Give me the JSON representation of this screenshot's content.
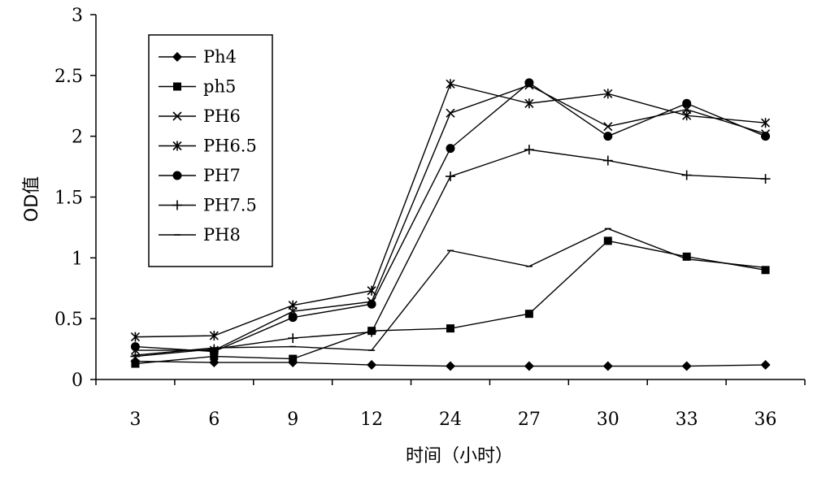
{
  "chart_data": {
    "type": "line",
    "title": "",
    "xlabel": "时间（小时）",
    "ylabel": "OD值",
    "categories": [
      "3",
      "6",
      "9",
      "12",
      "24",
      "27",
      "30",
      "33",
      "36"
    ],
    "ylim": [
      0,
      3
    ],
    "yticks": [
      "0",
      "0.5",
      "1",
      "1.5",
      "2",
      "2.5",
      "3"
    ],
    "grid": false,
    "legend_position": "top-left",
    "series": [
      {
        "name": "Ph4",
        "marker": "diamond",
        "values": [
          0.15,
          0.14,
          0.14,
          0.12,
          0.11,
          0.11,
          0.11,
          0.11,
          0.12
        ]
      },
      {
        "name": "ph5",
        "marker": "square",
        "values": [
          0.13,
          0.19,
          0.17,
          0.4,
          0.42,
          0.54,
          1.14,
          1.01,
          0.9
        ]
      },
      {
        "name": "PH6",
        "marker": "x",
        "values": [
          0.24,
          0.24,
          0.56,
          0.64,
          2.19,
          2.42,
          2.08,
          2.22,
          2.02
        ]
      },
      {
        "name": "PH6.5",
        "marker": "asterisk",
        "values": [
          0.35,
          0.36,
          0.61,
          0.73,
          2.43,
          2.27,
          2.35,
          2.17,
          2.11
        ]
      },
      {
        "name": "PH7",
        "marker": "circle",
        "values": [
          0.27,
          0.23,
          0.51,
          0.62,
          1.9,
          2.44,
          2.0,
          2.27,
          2.0
        ]
      },
      {
        "name": "PH7.5",
        "marker": "plus",
        "values": [
          0.19,
          0.25,
          0.34,
          0.39,
          1.67,
          1.89,
          1.8,
          1.68,
          1.65
        ]
      },
      {
        "name": "PH8",
        "marker": "dash",
        "values": [
          0.2,
          0.26,
          0.27,
          0.24,
          1.06,
          0.93,
          1.24,
          0.99,
          0.92
        ]
      }
    ]
  }
}
